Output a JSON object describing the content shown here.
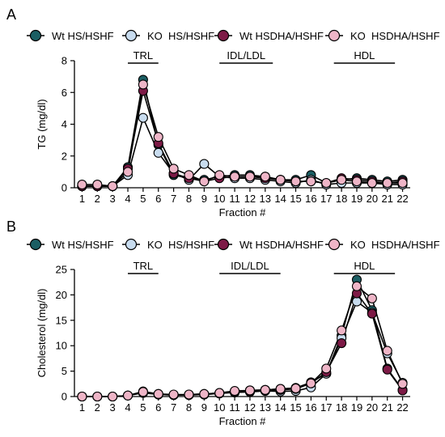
{
  "colors": {
    "wt_hs": "#1b5e63",
    "ko_hs": "#c8dcef",
    "wt_hsdha": "#7d1a46",
    "ko_hsdha": "#eeb5c7",
    "axis": "#000000"
  },
  "chart_data": [
    {
      "type": "line",
      "panel_label": "A",
      "xlabel": "Fraction #",
      "ylabel": "TG (mg/dl)",
      "x": [
        1,
        2,
        3,
        4,
        5,
        6,
        7,
        8,
        9,
        10,
        11,
        12,
        13,
        14,
        15,
        16,
        17,
        18,
        19,
        20,
        21,
        22
      ],
      "xlim": [
        0.5,
        22.5
      ],
      "ylim": [
        0,
        8
      ],
      "yticks": [
        0,
        2,
        4,
        6,
        8
      ],
      "legend": {
        "position": "top"
      },
      "regions": [
        {
          "label": "TRL",
          "x_start": 4,
          "x_end": 6
        },
        {
          "label": "IDL/LDL",
          "x_start": 10,
          "x_end": 13.5
        },
        {
          "label": "HDL",
          "x_start": 17.5,
          "x_end": 21.5
        }
      ],
      "series": [
        {
          "name": "Wt HS/HSHF",
          "color_key": "wt_hs",
          "values": [
            0.1,
            0.1,
            0.1,
            1.3,
            6.8,
            2.7,
            0.8,
            0.6,
            0.5,
            0.7,
            0.8,
            0.8,
            0.7,
            0.5,
            0.5,
            0.8,
            0.3,
            0.5,
            0.6,
            0.5,
            0.4,
            0.5
          ]
        },
        {
          "name": "KO  HS/HSHF",
          "color_key": "ko_hs",
          "values": [
            0.1,
            0.1,
            0.1,
            0.8,
            4.4,
            2.2,
            0.9,
            0.5,
            1.5,
            0.7,
            0.6,
            0.6,
            0.5,
            0.4,
            0.3,
            0.5,
            0.2,
            0.3,
            0.3,
            0.3,
            0.2,
            0.2
          ]
        },
        {
          "name": "Wt HSDHA/HSHF",
          "color_key": "wt_hsdha",
          "values": [
            0.1,
            0.1,
            0.1,
            1.2,
            6.1,
            2.8,
            0.9,
            0.6,
            0.4,
            0.6,
            0.7,
            0.7,
            0.6,
            0.5,
            0.4,
            0.4,
            0.3,
            0.6,
            0.5,
            0.4,
            0.3,
            0.4
          ]
        },
        {
          "name": "KO  HSDHA/HSHF",
          "color_key": "ko_hsdha",
          "values": [
            0.2,
            0.2,
            0.1,
            1.0,
            6.5,
            3.2,
            1.2,
            0.8,
            0.4,
            0.8,
            0.7,
            0.7,
            0.7,
            0.5,
            0.4,
            0.4,
            0.3,
            0.5,
            0.4,
            0.3,
            0.3,
            0.3
          ]
        }
      ]
    },
    {
      "type": "line",
      "panel_label": "B",
      "xlabel": "Fraction #",
      "ylabel": "Cholesterol (mg/dl)",
      "x": [
        1,
        2,
        3,
        4,
        5,
        6,
        7,
        8,
        9,
        10,
        11,
        12,
        13,
        14,
        15,
        16,
        17,
        18,
        19,
        20,
        21,
        22
      ],
      "xlim": [
        0.5,
        22.5
      ],
      "ylim": [
        0,
        25
      ],
      "yticks": [
        0,
        5,
        10,
        15,
        20,
        25
      ],
      "legend": {
        "position": "top"
      },
      "regions": [
        {
          "label": "TRL",
          "x_start": 4,
          "x_end": 6
        },
        {
          "label": "IDL/LDL",
          "x_start": 10,
          "x_end": 14
        },
        {
          "label": "HDL",
          "x_start": 17.5,
          "x_end": 21.5
        }
      ],
      "series": [
        {
          "name": "Wt HS/HSHF",
          "color_key": "wt_hs",
          "values": [
            0,
            0,
            0,
            0.2,
            1.0,
            0.5,
            0.3,
            0.4,
            0.5,
            0.7,
            1.0,
            1.2,
            1.3,
            1.5,
            1.7,
            2.8,
            4.5,
            12.0,
            23.0,
            17.0,
            5.5,
            1.3
          ]
        },
        {
          "name": "KO  HS/HSHF",
          "color_key": "ko_hs",
          "values": [
            0,
            0,
            0,
            0.2,
            0.7,
            0.4,
            0.3,
            0.3,
            0.4,
            0.6,
            0.8,
            0.9,
            1.1,
            1.0,
            1.1,
            1.8,
            4.5,
            11.5,
            18.7,
            16.5,
            8.5,
            2.7
          ]
        },
        {
          "name": "Wt HSDHA/HSHF",
          "color_key": "wt_hsdha",
          "values": [
            0,
            0,
            0,
            0.2,
            0.8,
            0.4,
            0.3,
            0.3,
            0.4,
            0.6,
            0.9,
            1.0,
            1.2,
            1.3,
            1.5,
            2.6,
            4.8,
            10.5,
            20.3,
            16.3,
            5.3,
            1.2
          ]
        },
        {
          "name": "KO  HSDHA/HSHF",
          "color_key": "ko_hsdha",
          "values": [
            0,
            0,
            0,
            0.2,
            0.9,
            0.5,
            0.4,
            0.4,
            0.5,
            0.7,
            1.1,
            1.2,
            1.3,
            1.5,
            1.6,
            2.6,
            5.5,
            13.0,
            21.7,
            19.3,
            9.0,
            2.5
          ]
        }
      ]
    }
  ]
}
